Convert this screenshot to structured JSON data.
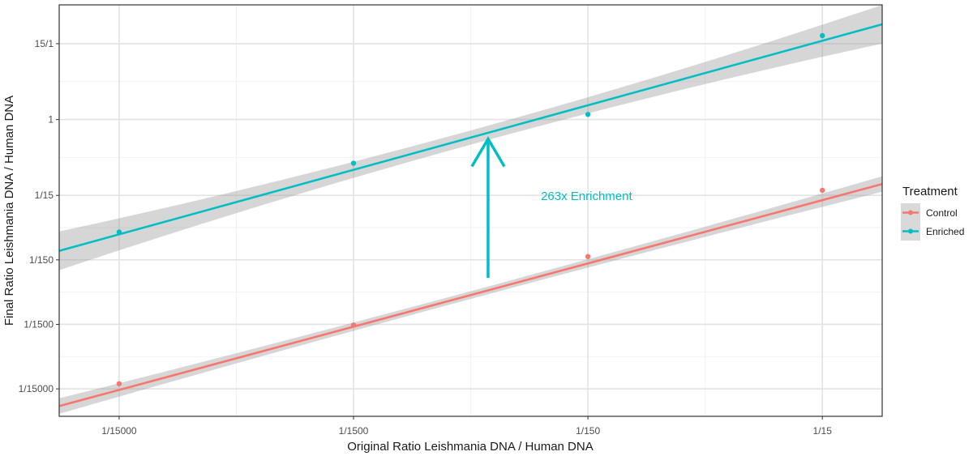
{
  "chart_data": {
    "type": "scatter",
    "xlabel": "Original Ratio Leishmania DNA / Human DNA",
    "ylabel": "Final Ratio Leishmania DNA / Human DNA",
    "x_scale": "log10",
    "y_scale": "log10",
    "x_ticks": [
      {
        "value": 6.66667e-05,
        "label": "1/15000"
      },
      {
        "value": 0.000666667,
        "label": "1/1500"
      },
      {
        "value": 0.00666667,
        "label": "1/150"
      },
      {
        "value": 0.0666667,
        "label": "1/15"
      }
    ],
    "y_ticks": [
      {
        "value": 6.66667e-05,
        "label": "1/15000"
      },
      {
        "value": 0.000666667,
        "label": "1/1500"
      },
      {
        "value": 0.00666667,
        "label": "1/150"
      },
      {
        "value": 0.0666667,
        "label": "1/15"
      },
      {
        "value": 1,
        "label": "1"
      },
      {
        "value": 15,
        "label": "15/1"
      }
    ],
    "xlim": [
      3.7e-05,
      0.12
    ],
    "ylim": [
      2.5e-05,
      60
    ],
    "grid": true,
    "legend": {
      "title": "Treatment",
      "position": "right"
    },
    "series": [
      {
        "name": "Control",
        "color": "#f8766d",
        "x": [
          6.66667e-05,
          0.000666667,
          0.00666667,
          0.0666667
        ],
        "y": [
          8e-05,
          0.00065,
          0.0075,
          0.08
        ],
        "fit": {
          "x": [
            3.7e-05,
            0.12
          ],
          "y": [
            3.6e-05,
            0.1
          ],
          "band_halfwidth_log10": [
            0.12,
            0.06,
            0.12
          ]
        }
      },
      {
        "name": "Enriched",
        "color": "#00bfc4",
        "x": [
          6.66667e-05,
          0.000666667,
          0.00666667,
          0.0666667
        ],
        "y": [
          0.018,
          0.21,
          1.2,
          20
        ],
        "fit": {
          "x": [
            3.7e-05,
            0.12
          ],
          "y": [
            0.0092,
            30
          ],
          "band_halfwidth_log10": [
            0.3,
            0.11,
            0.3
          ]
        }
      }
    ],
    "annotations": [
      {
        "type": "arrow",
        "x": 0.0025,
        "y_from": 0.0035,
        "y_to": 0.5,
        "color": "#00bfc4"
      },
      {
        "type": "text",
        "text": "263x Enrichment",
        "x": 0.0042,
        "y": 0.065,
        "color": "#00bfc4"
      }
    ]
  }
}
